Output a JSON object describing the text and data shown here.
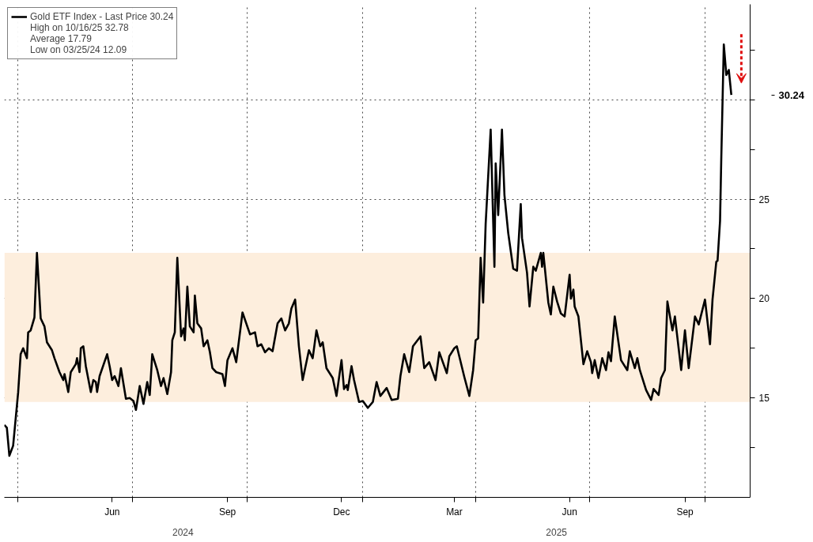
{
  "chart_data": {
    "type": "line",
    "x": [
      "2024-03-21",
      "2024-03-23",
      "2024-03-25",
      "2024-03-28",
      "2024-04-01",
      "2024-04-03",
      "2024-04-05",
      "2024-04-08",
      "2024-04-09",
      "2024-04-11",
      "2024-04-14",
      "2024-04-16",
      "2024-04-19",
      "2024-04-22",
      "2024-04-24",
      "2024-04-28",
      "2024-04-30",
      "2024-05-04",
      "2024-05-07",
      "2024-05-08",
      "2024-05-11",
      "2024-05-13",
      "2024-05-17",
      "2024-05-18",
      "2024-05-20",
      "2024-05-21",
      "2024-05-23",
      "2024-05-25",
      "2024-05-29",
      "2024-05-31",
      "2024-06-02",
      "2024-06-03",
      "2024-06-05",
      "2024-06-11",
      "2024-06-13",
      "2024-06-15",
      "2024-06-17",
      "2024-06-20",
      "2024-06-22",
      "2024-06-26",
      "2024-06-29",
      "2024-07-02",
      "2024-07-04",
      "2024-07-07",
      "2024-07-10",
      "2024-07-13",
      "2024-07-15",
      "2024-07-17",
      "2024-07-21",
      "2024-07-24",
      "2024-07-26",
      "2024-07-29",
      "2024-08-01",
      "2024-08-02",
      "2024-08-04",
      "2024-08-06",
      "2024-08-09",
      "2024-08-11",
      "2024-08-12",
      "2024-08-14",
      "2024-08-16",
      "2024-08-19",
      "2024-08-20",
      "2024-08-22",
      "2024-08-25",
      "2024-08-27",
      "2024-08-30",
      "2024-09-01",
      "2024-09-03",
      "2024-09-06",
      "2024-09-11",
      "2024-09-13",
      "2024-09-15",
      "2024-09-19",
      "2024-09-22",
      "2024-09-27",
      "2024-10-03",
      "2024-10-07",
      "2024-10-09",
      "2024-10-12",
      "2024-10-15",
      "2024-10-18",
      "2024-10-21",
      "2024-10-25",
      "2024-10-28",
      "2024-10-31",
      "2024-11-03",
      "2024-11-05",
      "2024-11-08",
      "2024-11-11",
      "2024-11-14",
      "2024-11-19",
      "2024-11-22",
      "2024-11-25",
      "2024-11-28",
      "2024-11-30",
      "2024-12-03",
      "2024-12-08",
      "2024-12-11",
      "2024-12-15",
      "2024-12-17",
      "2024-12-19",
      "2024-12-20",
      "2024-12-23",
      "2024-12-25",
      "2024-12-29",
      "2025-01-01",
      "2025-01-05",
      "2025-01-09",
      "2025-01-12",
      "2025-01-15",
      "2025-01-20",
      "2025-01-24",
      "2025-01-29",
      "2025-01-31",
      "2025-02-03",
      "2025-02-07",
      "2025-02-10",
      "2025-02-16",
      "2025-02-19",
      "2025-02-23",
      "2025-02-28",
      "2025-03-03",
      "2025-03-09",
      "2025-03-11",
      "2025-03-15",
      "2025-03-17",
      "2025-03-23",
      "2025-03-27",
      "2025-03-30",
      "2025-04-01",
      "2025-04-03",
      "2025-04-05",
      "2025-04-07",
      "2025-04-09",
      "2025-04-13",
      "2025-04-16",
      "2025-04-17",
      "2025-04-19",
      "2025-04-22",
      "2025-04-24",
      "2025-04-27",
      "2025-05-01",
      "2025-05-04",
      "2025-05-07",
      "2025-05-08",
      "2025-05-12",
      "2025-05-14",
      "2025-05-17",
      "2025-05-19",
      "2025-05-23",
      "2025-05-24",
      "2025-05-25",
      "2025-05-29",
      "2025-05-31",
      "2025-06-02",
      "2025-06-05",
      "2025-06-08",
      "2025-06-11",
      "2025-06-15",
      "2025-06-16",
      "2025-06-18",
      "2025-06-19",
      "2025-06-22",
      "2025-06-26",
      "2025-06-29",
      "2025-07-02",
      "2025-07-03",
      "2025-07-05",
      "2025-07-08",
      "2025-07-11",
      "2025-07-14",
      "2025-07-16",
      "2025-07-18",
      "2025-07-21",
      "2025-07-26",
      "2025-07-31",
      "2025-08-02",
      "2025-08-06",
      "2025-08-08",
      "2025-08-10",
      "2025-08-15",
      "2025-08-19",
      "2025-08-21",
      "2025-08-25",
      "2025-08-27",
      "2025-08-30",
      "2025-09-01",
      "2025-09-05",
      "2025-09-07",
      "2025-09-12",
      "2025-09-15",
      "2025-09-18",
      "2025-09-23",
      "2025-09-26",
      "2025-10-01",
      "2025-10-05",
      "2025-10-07",
      "2025-10-10",
      "2025-10-11",
      "2025-10-13",
      "2025-10-14",
      "2025-10-16",
      "2025-10-18",
      "2025-10-20",
      "2025-10-22"
    ],
    "series": [
      {
        "name": "Gold ETF Index - Last Price 30.24",
        "color": "#000000",
        "values": [
          13.64,
          13.5,
          12.09,
          12.6,
          15.27,
          17.2,
          17.5,
          17.0,
          18.3,
          18.4,
          19.05,
          22.3,
          19.0,
          18.6,
          17.8,
          17.4,
          17.0,
          16.3,
          15.9,
          16.2,
          15.3,
          16.3,
          16.7,
          17.0,
          16.3,
          17.5,
          17.6,
          16.6,
          15.3,
          15.9,
          15.8,
          15.3,
          16.1,
          17.2,
          16.6,
          15.9,
          16.1,
          15.6,
          16.5,
          14.96,
          15.0,
          14.85,
          14.4,
          15.6,
          14.7,
          15.8,
          15.15,
          17.2,
          16.4,
          15.6,
          16.0,
          15.2,
          16.3,
          17.9,
          18.3,
          22.05,
          18.1,
          18.5,
          17.9,
          20.6,
          18.6,
          18.3,
          20.15,
          18.75,
          18.5,
          17.6,
          17.9,
          17.3,
          16.5,
          16.3,
          16.2,
          15.6,
          16.9,
          17.5,
          16.8,
          19.3,
          18.2,
          18.3,
          17.6,
          17.7,
          17.3,
          17.5,
          17.35,
          18.75,
          19.0,
          18.4,
          18.75,
          19.5,
          19.95,
          17.6,
          15.9,
          17.4,
          17.0,
          18.4,
          17.6,
          17.8,
          16.5,
          16.0,
          15.1,
          16.9,
          15.45,
          15.65,
          15.4,
          16.6,
          15.9,
          14.8,
          14.85,
          14.5,
          14.8,
          15.8,
          15.1,
          15.5,
          14.9,
          14.96,
          16.1,
          17.2,
          16.3,
          17.6,
          18.1,
          16.5,
          16.8,
          15.9,
          17.3,
          16.25,
          17.1,
          17.5,
          17.6,
          16.05,
          15.1,
          16.4,
          17.9,
          18.0,
          22.05,
          19.8,
          23.75,
          28.5,
          21.6,
          26.8,
          24.2,
          28.5,
          25.2,
          23.3,
          21.5,
          21.4,
          24.75,
          23.05,
          21.3,
          19.6,
          21.6,
          21.4,
          22.3,
          21.6,
          22.3,
          19.8,
          19.2,
          20.6,
          19.85,
          19.25,
          19.1,
          21.2,
          20.0,
          20.45,
          19.6,
          19.1,
          16.7,
          17.35,
          16.8,
          16.25,
          16.9,
          16.0,
          17.0,
          16.4,
          17.3,
          16.85,
          19.1,
          16.9,
          16.4,
          17.35,
          16.5,
          17.0,
          16.4,
          15.4,
          14.9,
          15.45,
          15.15,
          16.0,
          16.4,
          19.85,
          18.4,
          19.1,
          16.4,
          18.4,
          16.5,
          19.1,
          18.7,
          19.95,
          17.7,
          19.95,
          21.85,
          21.9,
          23.9,
          27.1,
          32.78,
          31.25,
          31.5,
          30.24
        ]
      }
    ],
    "xlim": [
      "2024-03-21",
      "2025-11-06"
    ],
    "xticks": [
      {
        "value": "2024-04-01",
        "label": null
      },
      {
        "value": "2024-06-15",
        "label": "Jun"
      },
      {
        "value": "2024-07-01",
        "label": null
      },
      {
        "value": "2024-09-15",
        "label": "Sep"
      },
      {
        "value": "2024-10-01",
        "label": null
      },
      {
        "value": "2024-12-15",
        "label": "Dec"
      },
      {
        "value": "2025-01-01",
        "label": null
      },
      {
        "value": "2025-03-15",
        "label": "Mar"
      },
      {
        "value": "2025-04-01",
        "label": null
      },
      {
        "value": "2025-06-15",
        "label": "Jun"
      },
      {
        "value": "2025-07-01",
        "label": null
      },
      {
        "value": "2025-09-15",
        "label": "Sep"
      },
      {
        "value": "2025-10-01",
        "label": null
      }
    ],
    "ylim": [
      10,
      34.8
    ],
    "yticks": [
      {
        "value": 12.5,
        "label": null
      },
      15,
      {
        "value": 17.5,
        "label": null
      },
      20,
      {
        "value": 22.5,
        "label": null
      },
      25,
      {
        "value": 27.5,
        "label": null
      },
      {
        "value": 30,
        "label": null
      },
      {
        "value": 32.5,
        "label": null
      }
    ],
    "bands": [
      {
        "axis": "y",
        "from": 14.8,
        "to": 22.3,
        "color": "#fdeedd"
      }
    ],
    "annotations": [
      "30.24",
      "High on 10/16/25 32.78",
      "Average 17.79",
      "Low on 03/25/24 12.09",
      "2024",
      "2025"
    ],
    "grid": true,
    "legend": "top left",
    "line_style": "solid",
    "marker": "none"
  }
}
